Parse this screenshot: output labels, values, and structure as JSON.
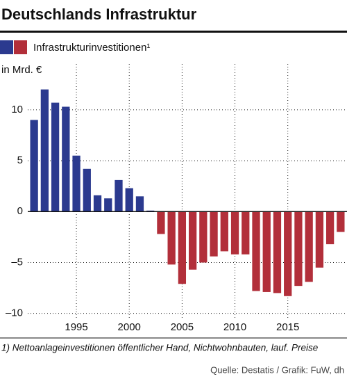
{
  "chart_data": {
    "type": "bar",
    "title": "Deutschlands Infrastruktur",
    "legend": "Infrastrukturinvestitionen¹",
    "y_label": "in Mrd. €",
    "footnote": "1) Nettoanlageinvestitionen öffentlicher Hand, Nichtwohnbauten, lauf. Preise",
    "source": "Quelle: Destatis / Grafik: FuW, dh",
    "x": [
      1991,
      1992,
      1993,
      1994,
      1995,
      1996,
      1997,
      1998,
      1999,
      2000,
      2001,
      2002,
      2003,
      2004,
      2005,
      2006,
      2007,
      2008,
      2009,
      2010,
      2011,
      2012,
      2013,
      2014,
      2015,
      2016,
      2017,
      2018,
      2019,
      2020
    ],
    "values": [
      9.0,
      12.0,
      10.7,
      10.3,
      5.5,
      4.2,
      1.6,
      1.3,
      3.1,
      2.3,
      1.5,
      0.1,
      -2.2,
      -5.2,
      -7.1,
      -5.7,
      -5.0,
      -4.4,
      -3.9,
      -4.2,
      -4.2,
      -7.8,
      -7.9,
      -8.0,
      -8.3,
      -7.3,
      -6.9,
      -5.5,
      -3.2,
      -2.0
    ],
    "colors": {
      "positive": "#2b3a8f",
      "negative": "#b22f3a"
    },
    "xlim": [
      1990.4,
      2020.6
    ],
    "xticks": [
      1995,
      2000,
      2005,
      2010,
      2015
    ],
    "ylim": [
      -10.5,
      14.5
    ],
    "yticks": [
      10,
      5,
      0,
      {
        "value": -5,
        "label": "–5"
      },
      {
        "value": -10,
        "label": "–10"
      }
    ],
    "grid": true
  }
}
